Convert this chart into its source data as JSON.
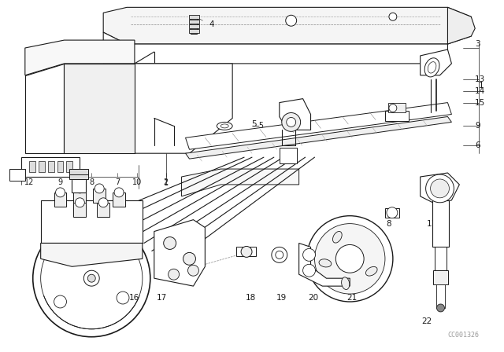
{
  "bg_color": "#ffffff",
  "line_color": "#1a1a1a",
  "watermark": "CC001326",
  "fig_w": 6.4,
  "fig_h": 4.48,
  "dpi": 100
}
